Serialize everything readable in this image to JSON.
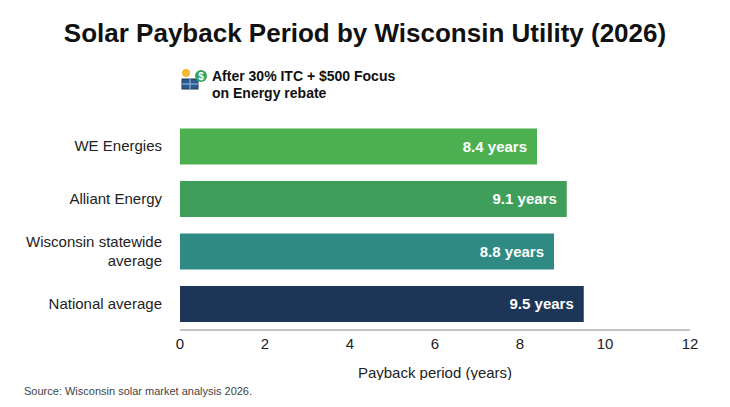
{
  "chart_data": {
    "type": "bar",
    "orientation": "horizontal",
    "title": "Solar Payback Period by Wisconsin Utility (2026)",
    "subtitle": "After 30% ITC + $500 Focus on Energy rebate",
    "categories": [
      "WE Energies",
      "Alliant Energy",
      "Wisconsin statewide average",
      "National average"
    ],
    "values": [
      8.4,
      9.1,
      8.8,
      9.5
    ],
    "value_labels": [
      "8.4 years",
      "9.1 years",
      "8.8 years",
      "9.5 years"
    ],
    "colors": [
      "#4cb050",
      "#3f9e5a",
      "#2e8a83",
      "#1d3557"
    ],
    "data_labels": true,
    "xlabel": "Payback period (years)",
    "xlim": [
      0,
      12
    ],
    "xticks": [
      0,
      2,
      4,
      6,
      8,
      10,
      12
    ],
    "grid": false,
    "source": "Source: Wisconsin solar market analysis 2026."
  }
}
